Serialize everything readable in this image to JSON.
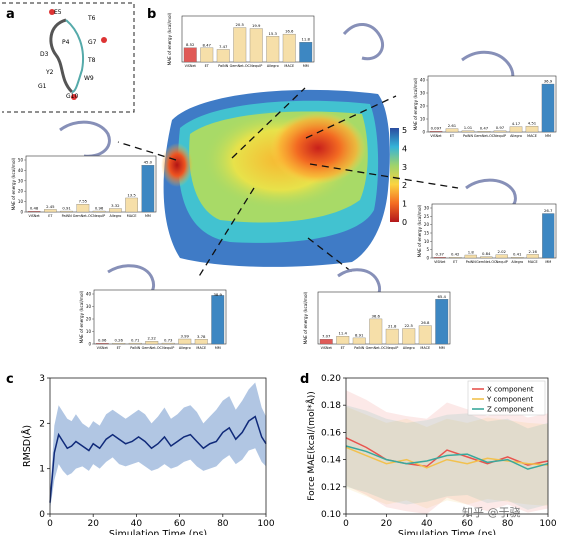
{
  "panels": {
    "a": {
      "letter": "a",
      "residues": [
        "E5",
        "T6",
        "P4",
        "G7",
        "D3",
        "T8",
        "Y2",
        "W9",
        "G1",
        "G10"
      ]
    },
    "b": {
      "letter": "b",
      "colorbar_ticks": [
        "5",
        "4",
        "3",
        "2",
        "1",
        "0"
      ]
    },
    "c": {
      "letter": "c"
    },
    "d": {
      "letter": "d"
    }
  },
  "watermark": "知乎 @于骁",
  "colors": {
    "bar_red": "#e05a57",
    "bar_tan": "#f6dfa9",
    "bar_blue": "#3d87c2",
    "band": "#9db8dc",
    "line": "#102a7a"
  },
  "chart_data": [
    {
      "id": "b-top",
      "type": "bar",
      "ylabel": "MAE of energy (kcal/mol)",
      "categories": [
        "ViSNet",
        "ET",
        "PaiNN",
        "GemNet-OC",
        "NequIP",
        "Allegro",
        "MACE",
        "MM"
      ],
      "values": [
        8.52,
        8.47,
        7.47,
        20.5,
        19.9,
        15.3,
        16.6,
        11.8
      ],
      "value_labels": [
        "8.52",
        "8.47",
        "7.47",
        "20.5",
        "19.9",
        "15.3",
        "16.6",
        "11.8"
      ],
      "ylim": [
        0,
        25
      ]
    },
    {
      "id": "b-right-top",
      "type": "bar",
      "ylabel": "MAE of energy (kcal/mol)",
      "categories": [
        "ViSNet",
        "ET",
        "PaiNN",
        "GemNet-OC",
        "NequIP",
        "Allegro",
        "MACE",
        "MM"
      ],
      "values": [
        0.097,
        2.61,
        1.01,
        0.47,
        0.97,
        4.17,
        4.51,
        36.9
      ],
      "value_labels": [
        "0.097",
        "2.61",
        "1.01",
        "0.47",
        "0.97",
        "4.17",
        "4.51",
        "36.9"
      ],
      "yticks": [
        0,
        10,
        20,
        30,
        40
      ],
      "ylim": [
        0,
        40
      ]
    },
    {
      "id": "b-left",
      "type": "bar",
      "ylabel": "MAE of energy (kcal/mol)",
      "categories": [
        "ViSNet",
        "ET",
        "PaiNN",
        "GemNet-OC",
        "NequIP",
        "Allegro",
        "MACE",
        "MM"
      ],
      "values": [
        0.48,
        2.45,
        0.91,
        7.55,
        0.96,
        3.32,
        13.5,
        45.0
      ],
      "value_labels": [
        "0.48",
        "2.45",
        "0.91",
        "7.55",
        "0.96",
        "3.32",
        "13.5",
        "45.0"
      ],
      "yticks": [
        0,
        10,
        20,
        30,
        40,
        50
      ],
      "ylim": [
        0,
        50
      ]
    },
    {
      "id": "b-right-bottom",
      "type": "bar",
      "ylabel": "MAE of energy (kcal/mol)",
      "categories": [
        "ViSNet",
        "ET",
        "PaiNN",
        "GemNet-OC",
        "NequIP",
        "Allegro",
        "MACE",
        "MM"
      ],
      "values": [
        0.37,
        0.42,
        1.8,
        0.84,
        2.02,
        0.41,
        2.16,
        26.7
      ],
      "value_labels": [
        "0.37",
        "0.42",
        "1.8",
        "0.84",
        "2.02",
        "0.41",
        "2.16",
        "26.7"
      ],
      "yticks": [
        0,
        5,
        10,
        15,
        20,
        25,
        30
      ],
      "ylim": [
        0,
        30
      ]
    },
    {
      "id": "b-bottom-left",
      "type": "bar",
      "ylabel": "MAE of energy (kcal/mol)",
      "categories": [
        "ViSNet",
        "ET",
        "PaiNN",
        "GemNet-OC",
        "NequIP",
        "Allegro",
        "MACE",
        "MM"
      ],
      "values": [
        0.06,
        0.26,
        0.71,
        2.22,
        0.73,
        3.99,
        3.78,
        38.9
      ],
      "value_labels": [
        "0.06",
        "0.26",
        "0.71",
        "2.22",
        "0.73",
        "3.99",
        "3.78",
        "38.9"
      ],
      "yticks": [
        0,
        10,
        20,
        30,
        40
      ],
      "ylim": [
        0,
        40
      ]
    },
    {
      "id": "b-bottom-right",
      "type": "bar",
      "ylabel": "MAE of energy (kcal/mol)",
      "categories": [
        "ViSNet",
        "ET",
        "PaiNN",
        "GemNet-OC",
        "NequIP",
        "Allegro",
        "MACE",
        "MM"
      ],
      "values": [
        7.07,
        11.4,
        8.91,
        36.6,
        21.8,
        22.5,
        26.8,
        65.4
      ],
      "value_labels": [
        "7.07",
        "11.4",
        "8.91",
        "36.6",
        "21.8",
        "22.5",
        "26.8",
        "65.4"
      ],
      "ylim": [
        0,
        70
      ]
    },
    {
      "id": "c",
      "type": "area",
      "xlabel": "Simulation Time (ps)",
      "ylabel": "RMSD(Å)",
      "xlim": [
        0,
        100
      ],
      "ylim": [
        0,
        3
      ],
      "xticks": [
        0,
        20,
        40,
        60,
        80,
        100
      ],
      "yticks": [
        0,
        1,
        2,
        3
      ],
      "x": [
        0,
        2,
        4,
        6,
        8,
        10,
        12,
        15,
        18,
        20,
        23,
        26,
        29,
        32,
        35,
        38,
        41,
        44,
        47,
        50,
        53,
        56,
        59,
        62,
        65,
        68,
        71,
        74,
        77,
        80,
        83,
        86,
        89,
        92,
        95,
        98,
        100
      ],
      "y": [
        0.25,
        1.35,
        1.75,
        1.6,
        1.45,
        1.5,
        1.6,
        1.5,
        1.4,
        1.55,
        1.45,
        1.65,
        1.75,
        1.65,
        1.55,
        1.6,
        1.7,
        1.6,
        1.45,
        1.55,
        1.7,
        1.5,
        1.6,
        1.7,
        1.75,
        1.6,
        1.45,
        1.55,
        1.6,
        1.8,
        1.9,
        1.65,
        1.8,
        2.05,
        2.15,
        1.7,
        1.55
      ],
      "band_lower": [
        0.1,
        0.75,
        1.1,
        0.95,
        0.85,
        0.9,
        1.0,
        1.05,
        0.95,
        1.1,
        1.0,
        1.15,
        1.25,
        1.1,
        1.05,
        1.1,
        1.15,
        1.05,
        0.95,
        1.0,
        1.1,
        1.0,
        1.05,
        1.15,
        1.2,
        1.05,
        0.95,
        1.0,
        1.05,
        1.2,
        1.3,
        1.1,
        1.2,
        1.4,
        1.45,
        1.15,
        1.05
      ],
      "band_upper": [
        0.4,
        1.95,
        2.4,
        2.25,
        2.1,
        2.05,
        2.2,
        2.0,
        1.9,
        2.05,
        1.95,
        2.2,
        2.3,
        2.2,
        2.1,
        2.2,
        2.3,
        2.2,
        2.0,
        2.15,
        2.35,
        2.1,
        2.2,
        2.35,
        2.4,
        2.25,
        2.0,
        2.15,
        2.3,
        2.5,
        2.6,
        2.3,
        2.5,
        2.75,
        2.9,
        2.35,
        2.15
      ]
    },
    {
      "id": "d",
      "type": "line",
      "xlabel": "Simulation Time (ps)",
      "ylabel": "Force MAE(kcal/(mol*Å))",
      "xlim": [
        0,
        100
      ],
      "ylim": [
        0.1,
        0.2
      ],
      "xticks": [
        0,
        20,
        40,
        60,
        80,
        100
      ],
      "yticks": [
        0.1,
        0.12,
        0.14,
        0.16,
        0.18,
        0.2
      ],
      "legend_position": "top-right",
      "x": [
        0,
        10,
        20,
        30,
        40,
        50,
        60,
        70,
        80,
        90,
        100
      ],
      "series": [
        {
          "name": "X component",
          "color": "#e8544e",
          "values": [
            0.156,
            0.149,
            0.14,
            0.137,
            0.135,
            0.147,
            0.142,
            0.137,
            0.142,
            0.136,
            0.139
          ],
          "band_width": 0.035
        },
        {
          "name": "Y component",
          "color": "#f2c14e",
          "values": [
            0.149,
            0.143,
            0.137,
            0.14,
            0.134,
            0.14,
            0.137,
            0.141,
            0.139,
            0.137,
            0.136
          ],
          "band_width": 0.03
        },
        {
          "name": "Z component",
          "color": "#3aa89c",
          "values": [
            0.15,
            0.146,
            0.14,
            0.137,
            0.139,
            0.143,
            0.144,
            0.138,
            0.14,
            0.133,
            0.137
          ],
          "band_width": 0.03
        }
      ]
    }
  ]
}
